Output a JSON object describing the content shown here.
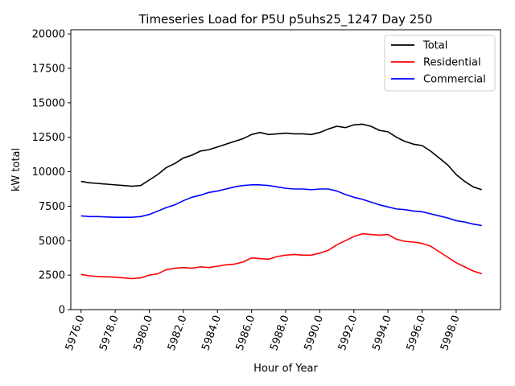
{
  "chart_data": {
    "type": "line",
    "title": "Timeseries Load for P5U p5uhs25_1247  Day 250",
    "xlabel": "Hour of Year",
    "ylabel": "kW total",
    "xlim": [
      5975.4,
      6000.6
    ],
    "ylim": [
      0,
      20300
    ],
    "xticks": [
      5976,
      5978,
      5980,
      5982,
      5984,
      5986,
      5988,
      5990,
      5992,
      5994,
      5996,
      5998
    ],
    "xtick_labels": [
      "5976.0",
      "5978.0",
      "5980.0",
      "5982.0",
      "5984.0",
      "5986.0",
      "5988.0",
      "5990.0",
      "5992.0",
      "5994.0",
      "5996.0",
      "5998.0"
    ],
    "yticks": [
      0,
      2500,
      5000,
      7500,
      10000,
      12500,
      15000,
      17500,
      20000
    ],
    "ytick_labels": [
      "0",
      "2500",
      "5000",
      "7500",
      "10000",
      "12500",
      "15000",
      "17500",
      "20000"
    ],
    "legend_position": "top-right",
    "x": [
      5976,
      5976.5,
      5977,
      5977.5,
      5978,
      5978.5,
      5979,
      5979.5,
      5980,
      5980.5,
      5981,
      5981.5,
      5982,
      5982.5,
      5983,
      5983.5,
      5984,
      5984.5,
      5985,
      5985.5,
      5986,
      5986.5,
      5987,
      5987.5,
      5988,
      5988.5,
      5989,
      5989.5,
      5990,
      5990.5,
      5991,
      5991.5,
      5992,
      5992.5,
      5993,
      5993.5,
      5994,
      5994.5,
      5995,
      5995.5,
      5996,
      5996.5,
      5997,
      5997.5,
      5998,
      5998.5,
      5999,
      5999.5
    ],
    "series": [
      {
        "name": "Total",
        "color": "#000000",
        "values": [
          9300,
          9200,
          9150,
          9100,
          9050,
          9000,
          8950,
          9000,
          9400,
          9800,
          10300,
          10600,
          11000,
          11200,
          11500,
          11600,
          11800,
          12000,
          12200,
          12400,
          12700,
          12850,
          12700,
          12750,
          12800,
          12750,
          12750,
          12700,
          12850,
          13100,
          13300,
          13200,
          13400,
          13450,
          13300,
          13000,
          12900,
          12500,
          12200,
          12000,
          11900,
          11500,
          11000,
          10500,
          9800,
          9300,
          8900,
          8700
        ]
      },
      {
        "name": "Residential",
        "color": "#ff0000",
        "values": [
          2550,
          2450,
          2400,
          2380,
          2350,
          2300,
          2250,
          2300,
          2500,
          2600,
          2900,
          3000,
          3050,
          3000,
          3100,
          3050,
          3150,
          3250,
          3300,
          3450,
          3750,
          3700,
          3650,
          3850,
          3950,
          4000,
          3950,
          3950,
          4100,
          4300,
          4700,
          5000,
          5300,
          5500,
          5450,
          5400,
          5450,
          5100,
          4950,
          4900,
          4800,
          4600,
          4200,
          3800,
          3400,
          3100,
          2800,
          2600
        ]
      },
      {
        "name": "Commercial",
        "color": "#0000ff",
        "values": [
          6800,
          6750,
          6750,
          6720,
          6700,
          6700,
          6700,
          6750,
          6900,
          7150,
          7400,
          7600,
          7900,
          8150,
          8300,
          8500,
          8600,
          8750,
          8900,
          9000,
          9050,
          9050,
          9000,
          8900,
          8800,
          8750,
          8750,
          8700,
          8750,
          8750,
          8600,
          8350,
          8150,
          8000,
          7800,
          7600,
          7450,
          7300,
          7250,
          7150,
          7100,
          6950,
          6800,
          6650,
          6450,
          6350,
          6200,
          6100
        ]
      }
    ]
  }
}
